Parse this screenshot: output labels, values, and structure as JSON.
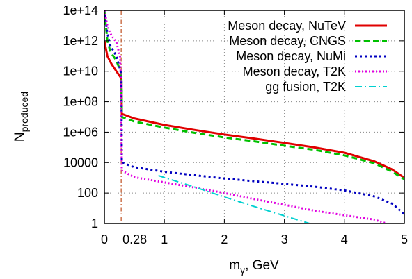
{
  "chart_data": {
    "type": "line",
    "xlabel": "m",
    "xlabel_sub": "γ",
    "xlabel_suffix": ", GeV",
    "ylabel": "N",
    "ylabel_sub": "produced",
    "y_scale": "log",
    "xlim": [
      0,
      5
    ],
    "ylim": [
      1,
      100000000000000.0
    ],
    "grid": true,
    "legend_position": "top-right",
    "x_ticks": [
      {
        "value": 0,
        "label": "0"
      },
      {
        "value": 1,
        "label": "1"
      },
      {
        "value": 2,
        "label": "2"
      },
      {
        "value": 3,
        "label": "3"
      },
      {
        "value": 4,
        "label": "4"
      },
      {
        "value": 5,
        "label": "5"
      }
    ],
    "y_ticks": [
      {
        "value": 1,
        "label": "1"
      },
      {
        "value": 100,
        "label": "100"
      },
      {
        "value": 10000,
        "label": "10000"
      },
      {
        "value": 1000000,
        "label": "1e+06"
      },
      {
        "value": 100000000,
        "label": "1e+08"
      },
      {
        "value": 10000000000,
        "label": "1e+10"
      },
      {
        "value": 1000000000000,
        "label": "1e+12"
      },
      {
        "value": 100000000000000,
        "label": "1e+14"
      }
    ],
    "annotation": {
      "x": 0.28,
      "label": "0.28",
      "color": "#c05020"
    },
    "series": [
      {
        "name": "Meson decay, NuTeV",
        "color": "#e00000",
        "dash": "",
        "width": 3,
        "points": [
          [
            0,
            1000000000000.0
          ],
          [
            0.05,
            100000000000.0
          ],
          [
            0.12,
            30000000000.0
          ],
          [
            0.2,
            10000000000.0
          ],
          [
            0.27,
            4000000000.0
          ],
          [
            0.285,
            2000000000.0
          ],
          [
            0.29,
            16000000.0
          ],
          [
            0.5,
            8000000.0
          ],
          [
            1,
            3000000.0
          ],
          [
            1.5,
            1400000.0
          ],
          [
            2,
            700000.0
          ],
          [
            2.5,
            380000.0
          ],
          [
            3,
            200000.0
          ],
          [
            3.5,
            100000.0
          ],
          [
            4,
            45000.0
          ],
          [
            4.5,
            12000.0
          ],
          [
            4.8,
            3500
          ],
          [
            5,
            1000
          ]
        ]
      },
      {
        "name": "Meson decay, CNGS",
        "color": "#00c000",
        "dash": "8,5",
        "width": 3,
        "points": [
          [
            0,
            100000000000000.0
          ],
          [
            0.05,
            1000000000000.0
          ],
          [
            0.1,
            200000000000.0
          ],
          [
            0.2,
            50000000000.0
          ],
          [
            0.27,
            10000000000.0
          ],
          [
            0.285,
            4000000000.0
          ],
          [
            0.29,
            10000000.0
          ],
          [
            0.5,
            5000000.0
          ],
          [
            1,
            2000000.0
          ],
          [
            1.5,
            900000.0
          ],
          [
            2,
            450000.0
          ],
          [
            2.5,
            250000.0
          ],
          [
            3,
            130000.0
          ],
          [
            3.5,
            70000.0
          ],
          [
            4,
            30000.0
          ],
          [
            4.5,
            9000
          ],
          [
            4.8,
            2500
          ],
          [
            5,
            800
          ]
        ]
      },
      {
        "name": "Meson decay, NuMi",
        "color": "#0000c0",
        "dash": "3,4",
        "width": 3,
        "points": [
          [
            0,
            100000000000000.0
          ],
          [
            0.05,
            3000000000000.0
          ],
          [
            0.1,
            500000000000.0
          ],
          [
            0.2,
            100000000000.0
          ],
          [
            0.27,
            10000000000.0
          ],
          [
            0.285,
            3000000000.0
          ],
          [
            0.29,
            10000.0
          ],
          [
            0.5,
            5000
          ],
          [
            1,
            2500
          ],
          [
            1.5,
            1500
          ],
          [
            2,
            900
          ],
          [
            2.5,
            600
          ],
          [
            3,
            400
          ],
          [
            3.5,
            260
          ],
          [
            4,
            150
          ],
          [
            4.5,
            60
          ],
          [
            4.8,
            20
          ],
          [
            5,
            4
          ]
        ]
      },
      {
        "name": "Meson decay, T2K",
        "color": "#e000e0",
        "dash": "2,3",
        "width": 3,
        "points": [
          [
            0,
            100000000000000.0
          ],
          [
            0.05,
            10000000000000.0
          ],
          [
            0.1,
            3000000000000.0
          ],
          [
            0.15,
            1500000000000.0
          ],
          [
            0.2,
            800000000000.0
          ],
          [
            0.26,
            100000000000.0
          ],
          [
            0.28,
            1000000000.0
          ],
          [
            0.29,
            3000
          ],
          [
            0.5,
            1100
          ],
          [
            1,
            500
          ],
          [
            1.5,
            230
          ],
          [
            2,
            100
          ],
          [
            2.5,
            40
          ],
          [
            3,
            17
          ],
          [
            3.5,
            7
          ],
          [
            4,
            3.5
          ],
          [
            4.5,
            1.8
          ],
          [
            4.7,
            1
          ]
        ]
      },
      {
        "name": "gg fusion, T2K",
        "color": "#00d0d0",
        "dash": "10,4,2,4",
        "width": 2,
        "points": [
          [
            0.9,
            1400
          ],
          [
            1.5,
            250
          ],
          [
            2,
            55
          ],
          [
            2.5,
            13
          ],
          [
            3,
            3.2
          ],
          [
            3.5,
            0.8
          ]
        ]
      }
    ]
  }
}
